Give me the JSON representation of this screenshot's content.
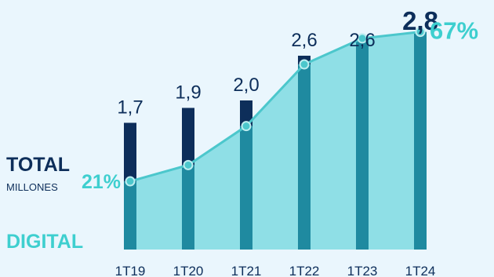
{
  "chart_data": {
    "type": "bar",
    "categories": [
      "1T19",
      "1T20",
      "1T21",
      "1T22",
      "1T23",
      "1T24"
    ],
    "series": [
      {
        "name": "TOTAL",
        "values": [
          1.7,
          1.9,
          2.0,
          2.6,
          2.6,
          2.8
        ],
        "labels": [
          "1,7",
          "1,9",
          "2,0",
          "2,6",
          "2,6",
          "2,8"
        ],
        "color": "#0d2e5a"
      },
      {
        "name": "DIGITAL",
        "type": "area",
        "values": [
          21,
          26,
          38,
          57,
          65,
          67
        ],
        "labels": [
          "21%",
          "",
          "",
          "",
          "",
          "67%"
        ],
        "color": "#3ecfcf"
      }
    ],
    "legend": {
      "total": "TOTAL",
      "total_units": "MILLONES",
      "digital": "DIGITAL"
    },
    "ylim": [
      0,
      3.3
    ],
    "pct_ylim": [
      0,
      100
    ],
    "grid": false
  }
}
